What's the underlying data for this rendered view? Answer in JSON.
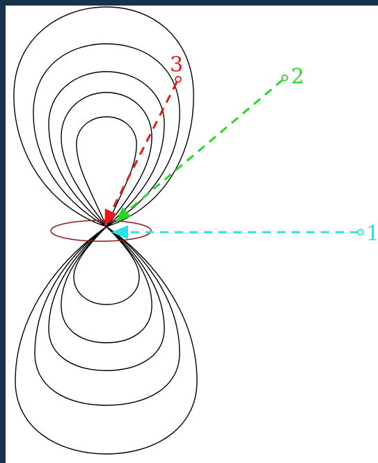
{
  "diagram": {
    "colors": {
      "background": "#ffffff",
      "border": "#17324a",
      "field_lines": "#000000",
      "ring": "#8b1a1a",
      "path_1": "#27e3e3",
      "path_2": "#27d827",
      "path_3": "#e31a1a"
    },
    "markers": [
      {
        "id": "1",
        "label": "1",
        "color": "#27e3e3"
      },
      {
        "id": "2",
        "label": "2",
        "color": "#27d827"
      },
      {
        "id": "3",
        "label": "3",
        "color": "#e31a1a"
      }
    ]
  }
}
